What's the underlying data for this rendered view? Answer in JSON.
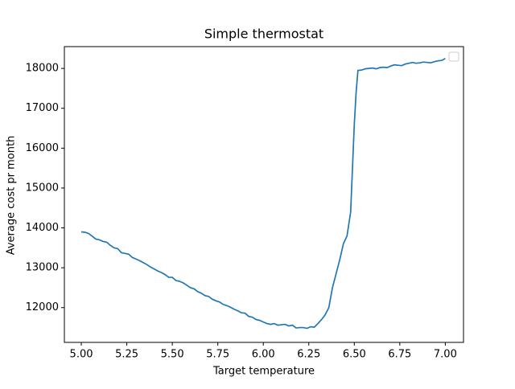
{
  "chart_data": {
    "type": "line",
    "title": "Simple thermostat",
    "x_label": "Target temperature",
    "y_label": "Average cost pr month",
    "x": [
      5.0,
      5.02,
      5.04,
      5.06,
      5.08,
      5.1,
      5.12,
      5.14,
      5.16,
      5.18,
      5.2,
      5.22,
      5.24,
      5.26,
      5.28,
      5.3,
      5.32,
      5.34,
      5.36,
      5.38,
      5.4,
      5.42,
      5.44,
      5.46,
      5.48,
      5.5,
      5.52,
      5.54,
      5.56,
      5.58,
      5.6,
      5.62,
      5.64,
      5.66,
      5.68,
      5.7,
      5.72,
      5.74,
      5.76,
      5.78,
      5.8,
      5.82,
      5.84,
      5.86,
      5.88,
      5.9,
      5.92,
      5.94,
      5.96,
      5.98,
      6.0,
      6.02,
      6.04,
      6.06,
      6.08,
      6.1,
      6.12,
      6.14,
      6.16,
      6.18,
      6.2,
      6.22,
      6.24,
      6.26,
      6.28,
      6.3,
      6.32,
      6.34,
      6.36,
      6.38,
      6.4,
      6.42,
      6.44,
      6.46,
      6.48,
      6.49,
      6.5,
      6.51,
      6.52,
      6.54,
      6.56,
      6.58,
      6.6,
      6.62,
      6.64,
      6.66,
      6.68,
      6.7,
      6.72,
      6.74,
      6.76,
      6.78,
      6.8,
      6.82,
      6.84,
      6.86,
      6.88,
      6.9,
      6.92,
      6.94,
      6.96,
      6.98,
      7.0
    ],
    "series": [
      {
        "color": "#1f77b4",
        "values": [
          13900,
          13890,
          13860,
          13790,
          13720,
          13700,
          13660,
          13640,
          13560,
          13500,
          13480,
          13380,
          13360,
          13340,
          13260,
          13220,
          13180,
          13130,
          13080,
          13020,
          12970,
          12920,
          12880,
          12830,
          12760,
          12760,
          12680,
          12660,
          12620,
          12560,
          12500,
          12470,
          12400,
          12360,
          12300,
          12280,
          12210,
          12170,
          12140,
          12080,
          12050,
          12010,
          11960,
          11920,
          11870,
          11860,
          11780,
          11760,
          11700,
          11680,
          11640,
          11600,
          11580,
          11600,
          11560,
          11570,
          11580,
          11540,
          11560,
          11490,
          11500,
          11500,
          11480,
          11520,
          11510,
          11600,
          11700,
          11820,
          12000,
          12500,
          12850,
          13200,
          13600,
          13800,
          14400,
          15500,
          16600,
          17400,
          17950,
          17960,
          17990,
          18000,
          18010,
          17990,
          18020,
          18030,
          18020,
          18060,
          18090,
          18080,
          18070,
          18110,
          18130,
          18150,
          18130,
          18140,
          18160,
          18150,
          18140,
          18170,
          18190,
          18200,
          18250
        ]
      }
    ],
    "xlim": [
      4.907,
      7.1
    ],
    "ylim": [
      11128,
      18547
    ],
    "xticks": [
      {
        "value": 5,
        "label": "5.00"
      },
      {
        "value": 5.25,
        "label": "5.25"
      },
      {
        "value": 5.5,
        "label": "5.50"
      },
      {
        "value": 5.75,
        "label": "5.75"
      },
      {
        "value": 6,
        "label": "6.00"
      },
      {
        "value": 6.25,
        "label": "6.25"
      },
      {
        "value": 6.5,
        "label": "6.50"
      },
      {
        "value": 6.75,
        "label": "6.75"
      },
      {
        "value": 7,
        "label": "7.00"
      }
    ],
    "yticks": [
      12000,
      13000,
      14000,
      15000,
      16000,
      17000,
      18000
    ]
  }
}
